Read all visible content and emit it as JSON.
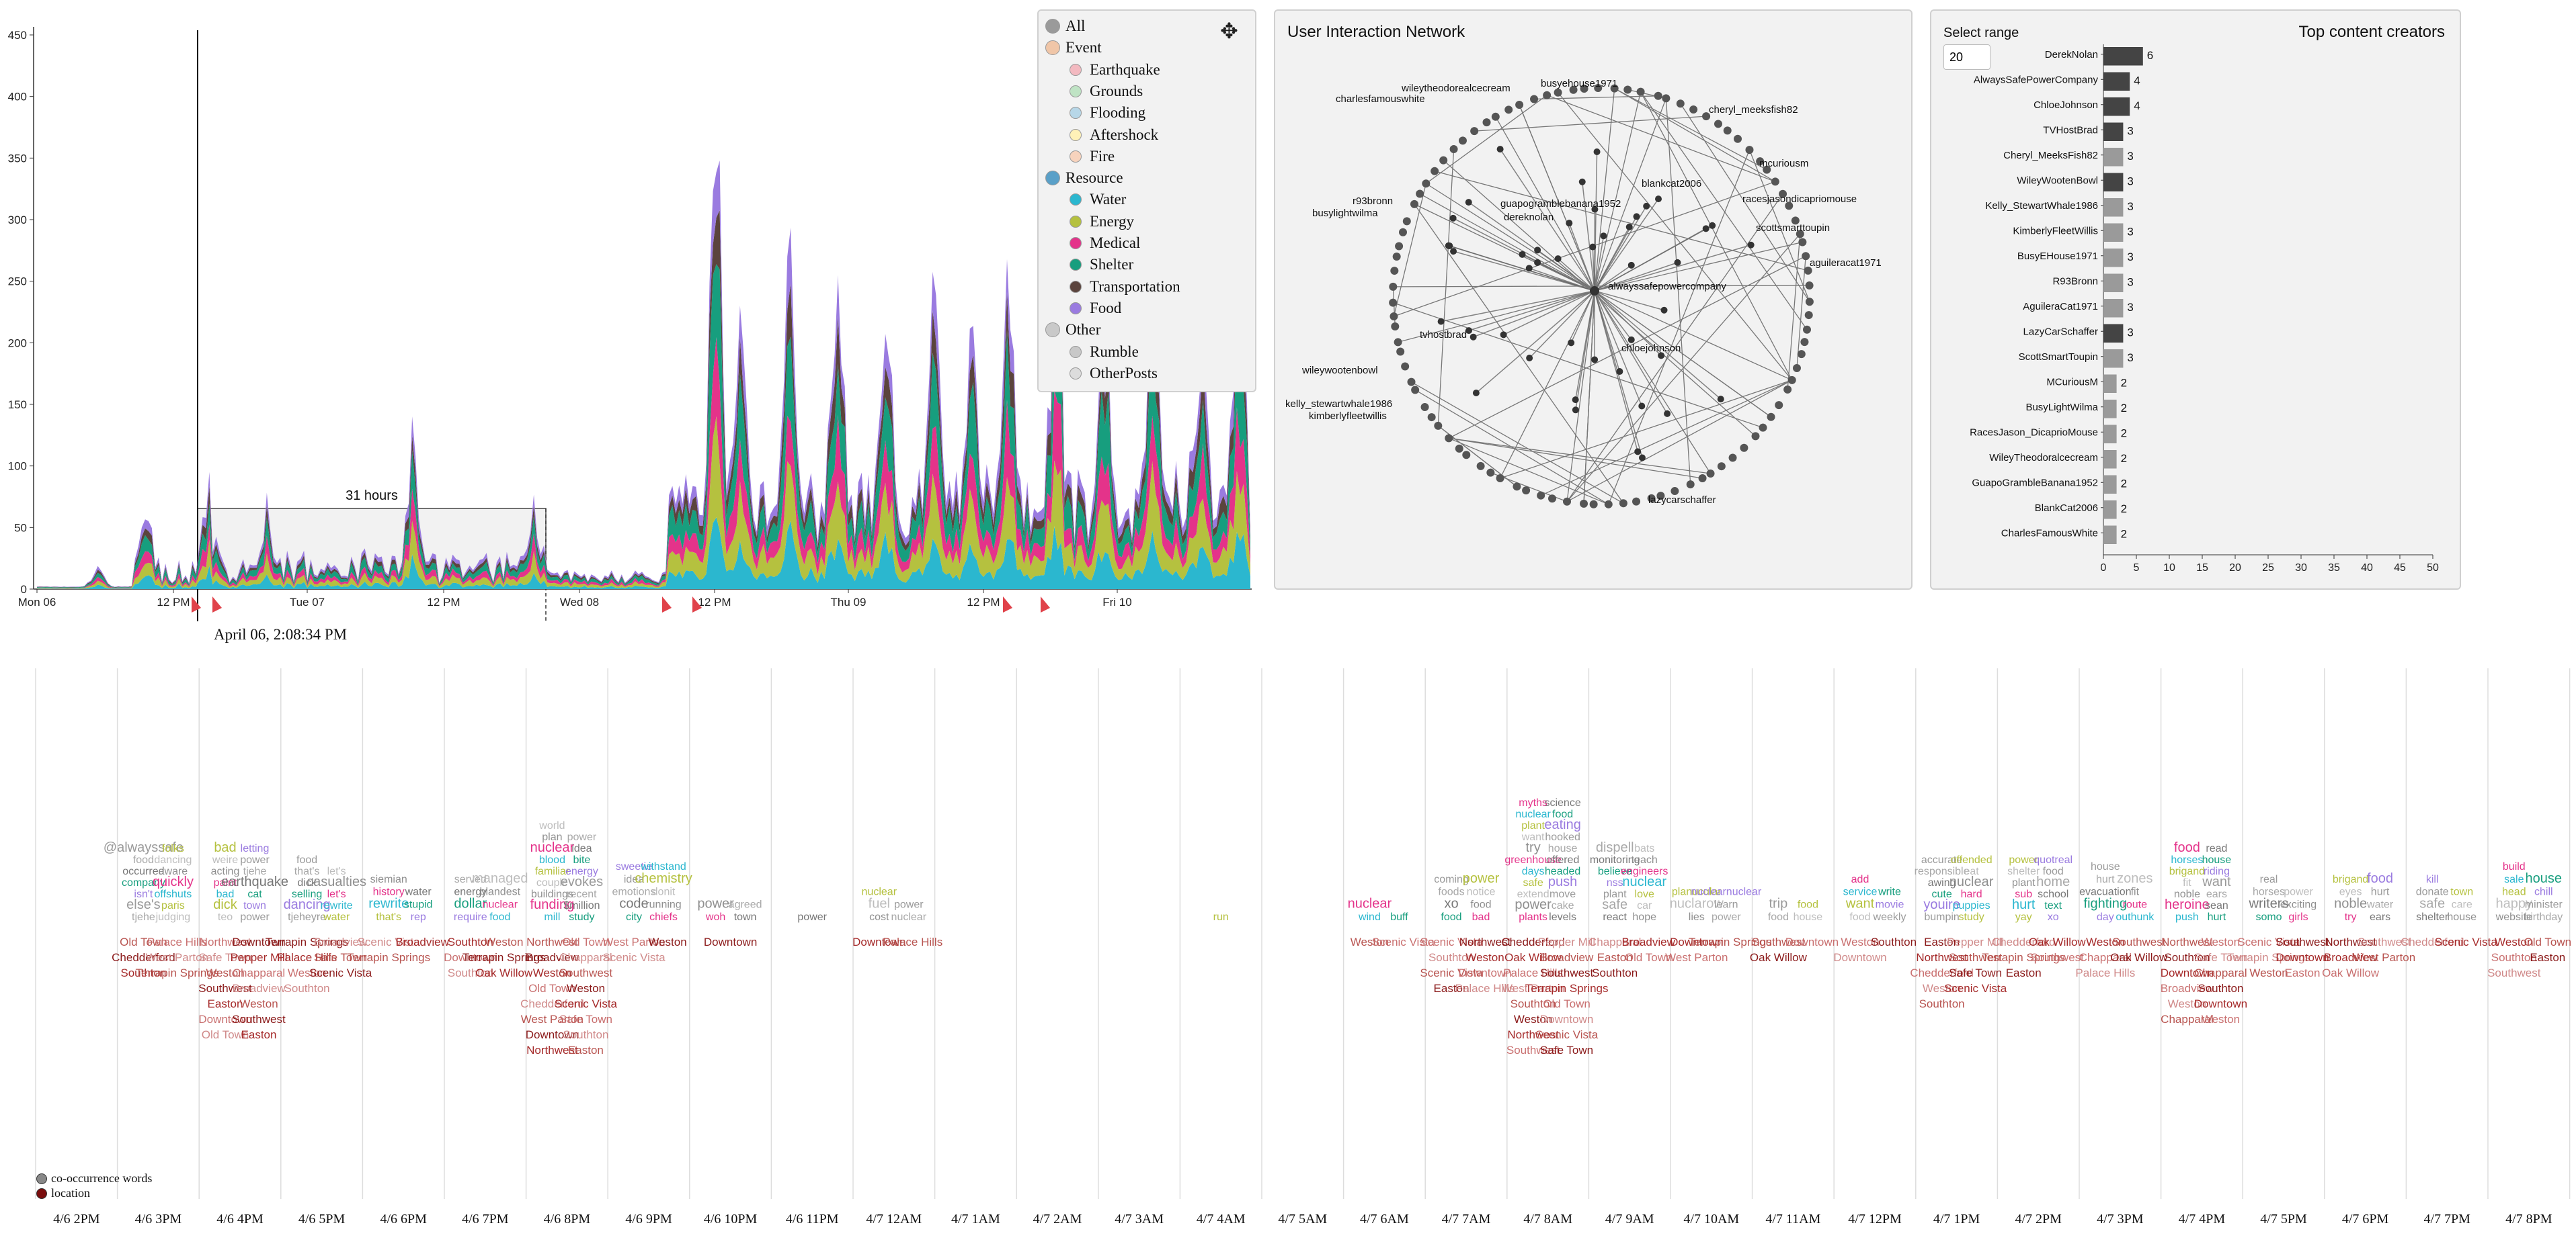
{
  "stream": {
    "y_ticks": [
      "0",
      "50",
      "100",
      "150",
      "200",
      "250",
      "300",
      "350",
      "400",
      "450"
    ],
    "x_ticks": [
      "Mon 06",
      "12 PM",
      "Tue 07",
      "12 PM",
      "Wed 08",
      "12 PM",
      "Thu 09",
      "12 PM",
      "Fri 10"
    ],
    "brush_label": "31 hours",
    "cursor_label": "April 06, 2:08:34 PM",
    "colors": {
      "Water": "#2bb7cf",
      "Energy": "#b5c13f",
      "Medical": "#e4338a",
      "Shelter": "#179e7e",
      "Transportation": "#5b443d",
      "Food": "#9a7be0"
    },
    "ylim": [
      0,
      460
    ]
  },
  "legend": {
    "items": [
      {
        "label": "All",
        "level": 0,
        "color": "#9a9a9a"
      },
      {
        "label": "Event",
        "level": 0,
        "color": "#f0c6a8"
      },
      {
        "label": "Earthquake",
        "level": 1,
        "color": "#f3b9c0"
      },
      {
        "label": "Grounds",
        "level": 1,
        "color": "#bfe3c4"
      },
      {
        "label": "Flooding",
        "level": 1,
        "color": "#b7d7e8"
      },
      {
        "label": "Aftershock",
        "level": 1,
        "color": "#fff2b8"
      },
      {
        "label": "Fire",
        "level": 1,
        "color": "#f7d3bd"
      },
      {
        "label": "Resource",
        "level": 0,
        "color": "#5aa0c8"
      },
      {
        "label": "Water",
        "level": 1,
        "color": "#2bb7cf"
      },
      {
        "label": "Energy",
        "level": 1,
        "color": "#b5c13f"
      },
      {
        "label": "Medical",
        "level": 1,
        "color": "#e4338a"
      },
      {
        "label": "Shelter",
        "level": 1,
        "color": "#179e7e"
      },
      {
        "label": "Transportation",
        "level": 1,
        "color": "#5b443d"
      },
      {
        "label": "Food",
        "level": 1,
        "color": "#9a7be0"
      },
      {
        "label": "Other",
        "level": 0,
        "color": "#c9c9c9"
      },
      {
        "label": "Rumble",
        "level": 1,
        "color": "#c8c8c8"
      },
      {
        "label": "OtherPosts",
        "level": 1,
        "color": "#dcdcdc"
      }
    ]
  },
  "network": {
    "title": "User Interaction Network",
    "labels": [
      "busyehouse1971",
      "wileytheodorealcecream",
      "charlesfamouswhite",
      "cheryl_meeksfish82",
      "mcuriousm",
      "blankcat2006",
      "racesjasondicapriomouse",
      "guapogramblebanana1952",
      "dereknolan",
      "r93bronn",
      "busylightwilma",
      "scottsmarttoupin",
      "aguileracat1971",
      "alwayssafepowercompany",
      "tvhostbrad",
      "chloejohnson",
      "wileywootenbowl",
      "kelly_stewartwhale1986",
      "kimberlyfleetwillis",
      "lazycarschaffer"
    ]
  },
  "creators": {
    "title": "Top content creators",
    "select_label": "Select range",
    "range_value": "20",
    "x_ticks": [
      "0",
      "5",
      "10",
      "15",
      "20",
      "25",
      "30",
      "35",
      "40",
      "45",
      "50"
    ],
    "chart_data": {
      "type": "bar",
      "categories": [
        "DerekNolan",
        "AlwaysSafePowerCompany",
        "ChloeJohnson",
        "TVHostBrad",
        "Cheryl_MeeksFish82",
        "WileyWootenBowl",
        "Kelly_StewartWhale1986",
        "KimberlyFleetWillis",
        "BusyEHouse1971",
        "R93Bronn",
        "AguileraCat1971",
        "LazyCarSchaffer",
        "ScottSmartToupin",
        "MCuriousM",
        "BusyLightWilma",
        "RacesJason_DicaprioMouse",
        "WileyTheodoralcecream",
        "GuapoGrambleBanana1952",
        "BlankCat2006",
        "CharlesFamousWhite"
      ],
      "values": [
        6,
        4,
        4,
        3,
        3,
        3,
        3,
        3,
        3,
        3,
        3,
        3,
        3,
        2,
        2,
        2,
        2,
        2,
        2,
        2
      ],
      "dark": [
        true,
        true,
        true,
        true,
        false,
        true,
        false,
        false,
        false,
        false,
        false,
        true,
        false,
        false,
        false,
        false,
        false,
        false,
        false,
        false
      ],
      "xlim": [
        0,
        50
      ]
    }
  },
  "wordcloud": {
    "time_labels": [
      "4/6 2PM",
      "4/6 3PM",
      "4/6 4PM",
      "4/6 5PM",
      "4/6 6PM",
      "4/6 7PM",
      "4/6 8PM",
      "4/6 9PM",
      "4/6 10PM",
      "4/6 11PM",
      "4/7 12AM",
      "4/7 1AM",
      "4/7 2AM",
      "4/7 3AM",
      "4/7 4AM",
      "4/7 5AM",
      "4/7 6AM",
      "4/7 7AM",
      "4/7 8AM",
      "4/7 9AM",
      "4/7 10AM",
      "4/7 11AM",
      "4/7 12PM",
      "4/7 1PM",
      "4/7 2PM",
      "4/7 3PM",
      "4/7 4PM",
      "4/7 5PM",
      "4/7 6PM",
      "4/7 7PM",
      "4/7 8PM"
    ],
    "legend_cooccurrence": "co-occurrence words",
    "legend_location": "location",
    "columns": [
      {
        "up": [],
        "down": []
      },
      {
        "up": [
          "tjehe",
          "judging",
          "else's",
          "paris",
          "isn't",
          "offshuts",
          "company",
          "quickly",
          "occurred",
          "aware",
          "food",
          "dancing",
          "@alwayssafe",
          "folks"
        ],
        "down": [
          "Old Town",
          "Palace Hills",
          "Chedderford",
          "West Parton",
          "Southton",
          "Terrapin Springs"
        ]
      },
      {
        "up": [
          "teo",
          "power",
          "dick",
          "town",
          "bad",
          "cat",
          "paint",
          "earthquake",
          "acting",
          "tjehe",
          "weire",
          "power",
          "bad",
          "letting"
        ],
        "down": [
          "Northwest",
          "Downtown",
          "Safe Town",
          "Pepper Mill",
          "Weston",
          "Chapparal",
          "Southwest",
          "Broadview",
          "Easton",
          "Weston",
          "Downtown",
          "Southwest",
          "Old Town",
          "Easton"
        ]
      },
      {
        "up": [
          "tjeheyre",
          "water",
          "dancing",
          "rewrite",
          "selling",
          "let's",
          "dick",
          "casualties",
          "that's",
          "let's",
          "food"
        ],
        "down": [
          "Terrapin Springs",
          "Broadview",
          "Palace Hills",
          "Safe Town",
          "Weston",
          "Scenic Vista",
          "Southton"
        ]
      },
      {
        "up": [
          "that's",
          "rep",
          "rewrite",
          "stupid",
          "history",
          "water",
          "siemian"
        ],
        "down": [
          "Scenic Vista",
          "Broadview",
          "Terrapin Springs"
        ]
      },
      {
        "up": [
          "require",
          "food",
          "dollar",
          "nuclear",
          "energy",
          "blandest",
          "served",
          "managed"
        ],
        "down": [
          "Southton",
          "Weston",
          "Downtown",
          "Terrapin Springs",
          "Southton",
          "Oak Willow"
        ]
      },
      {
        "up": [
          "mill",
          "study",
          "funding",
          "$million",
          "buildings",
          "recent",
          "couple",
          "evokes",
          "familiar",
          "energy",
          "blood",
          "bite",
          "nuclear",
          "idea",
          "plan",
          "power",
          "world"
        ],
        "down": [
          "Northwest",
          "Old Town",
          "Broadview",
          "Chapparal",
          "Weston",
          "Southwest",
          "Old Town",
          "Weston",
          "Chedderford",
          "Scenic Vista",
          "West Parton",
          "Safe Town",
          "Downtown",
          "Southton",
          "Northwest",
          "Easton"
        ]
      },
      {
        "up": [
          "city",
          "chiefs",
          "code",
          "running",
          "emotions",
          "donit",
          "idea",
          "chemistry",
          "sweetie",
          "withstand"
        ],
        "down": [
          "West Parton",
          "Weston",
          "Scenic Vista"
        ]
      },
      {
        "up": [
          "woh",
          "town",
          "power",
          "agreed"
        ],
        "down": [
          "Downtown"
        ]
      },
      {
        "up": [
          "power"
        ],
        "down": []
      },
      {
        "up": [
          "cost",
          "nuclear",
          "fuel",
          "power",
          "nuclear"
        ],
        "down": [
          "Downtown",
          "Palace Hills"
        ]
      },
      {
        "up": [],
        "down": []
      },
      {
        "up": [],
        "down": []
      },
      {
        "up": [],
        "down": []
      },
      {
        "up": [
          "run"
        ],
        "down": []
      },
      {
        "up": [],
        "down": []
      },
      {
        "up": [
          "wind",
          "buff",
          "nuclear"
        ],
        "down": [
          "Weston",
          "Scenic Vista"
        ]
      },
      {
        "up": [
          "food",
          "bad",
          "xo",
          "food",
          "foods",
          "notice",
          "coming",
          "power"
        ],
        "down": [
          "Scenic Vista",
          "Northwest",
          "Southton",
          "Weston",
          "Scenic Vista",
          "Downtown",
          "Easton",
          "Palace Hills"
        ]
      },
      {
        "up": [
          "plants",
          "levels",
          "power",
          "cake",
          "extend",
          "move",
          "safe",
          "push",
          "days",
          "headed",
          "greenhouse",
          "offered",
          "try",
          "house",
          "want",
          "hooked",
          "plant",
          "eating",
          "nuclear",
          "food",
          "myths",
          "science"
        ],
        "down": [
          "Chedderford",
          "Pepper Mill",
          "Oak Willow",
          "Broadview",
          "Palace Hills",
          "Southwest",
          "West Parton",
          "Terrapin Springs",
          "Southton",
          "Old Town",
          "Weston",
          "Downtown",
          "Northwest",
          "Scenic Vista",
          "Southwest",
          "Safe Town"
        ]
      },
      {
        "up": [
          "react",
          "hope",
          "safe",
          "car",
          "plant",
          "love",
          "nss",
          "nuclear",
          "believe",
          "engineers",
          "monitoring",
          "teach",
          "dispell",
          "bats"
        ],
        "down": [
          "Chapparal",
          "Broadview",
          "Easton",
          "Old Town",
          "Southton"
        ]
      },
      {
        "up": [
          "lies",
          "power",
          "nuclarow",
          "learn",
          "planucular",
          "nuclearnuclear"
        ],
        "down": [
          "Downtown",
          "Terrapin Springs",
          "West Parton"
        ]
      },
      {
        "up": [
          "food",
          "house",
          "trip",
          "food"
        ],
        "down": [
          "Southwest",
          "Downtown",
          "Oak Willow"
        ]
      },
      {
        "up": [
          "food",
          "weekly",
          "want",
          "movie",
          "service",
          "write",
          "add"
        ],
        "down": [
          "Weston",
          "Southton",
          "Downtown"
        ]
      },
      {
        "up": [
          "bumpin",
          "study",
          "youire",
          "puppies",
          "cute",
          "hard",
          "awing",
          "nuclear",
          "responsible",
          "eat",
          "accurate",
          "offended"
        ],
        "down": [
          "Easton",
          "Pepper Mill",
          "Northwest",
          "Southwest",
          "Chedderford",
          "Safe Town",
          "Weston",
          "Scenic Vista",
          "Southton"
        ]
      },
      {
        "up": [
          "yay",
          "xo",
          "hurt",
          "text",
          "sub",
          "school",
          "plant",
          "home",
          "shelter",
          "food",
          "power",
          "quotreal"
        ],
        "down": [
          "Chedderford",
          "Oak Willow",
          "Terrapin Springs",
          "Southwest",
          "Easton"
        ]
      },
      {
        "up": [
          "day",
          "outhunk",
          "fighting",
          "route",
          "evacuation",
          "fit",
          "hurt",
          "zones",
          "house"
        ],
        "down": [
          "Weston",
          "Southwest",
          "Chapparal",
          "Oak Willow",
          "Palace Hills"
        ]
      },
      {
        "up": [
          "push",
          "hurt",
          "heroine",
          "sean",
          "noble",
          "ears",
          "fit",
          "want",
          "brigand",
          "riding",
          "horses",
          "house",
          "food",
          "read"
        ],
        "down": [
          "Northwest",
          "Weston",
          "Southton",
          "Safe Town",
          "Downtown",
          "Chapparal",
          "Broadview",
          "Southton",
          "Weston",
          "Downtown",
          "Chapparal",
          "Weston"
        ]
      },
      {
        "up": [
          "somo",
          "girls",
          "writers",
          "exciting",
          "horses",
          "power",
          "real"
        ],
        "down": [
          "Scenic Vista",
          "Southwest",
          "Terrapin Springs",
          "Downtown",
          "Weston",
          "Easton"
        ]
      },
      {
        "up": [
          "try",
          "ears",
          "noble",
          "water",
          "eyes",
          "hurt",
          "brigand",
          "food"
        ],
        "down": [
          "Northwest",
          "Southwest",
          "Broadview",
          "West Parton",
          "Oak Willow"
        ]
      },
      {
        "up": [
          "shelter",
          "house",
          "safe",
          "care",
          "donate",
          "town",
          "kill"
        ],
        "down": [
          "Chedderford",
          "Scenic Vista"
        ]
      },
      {
        "up": [
          "website",
          "birthday",
          "happy",
          "minister",
          "head",
          "chill",
          "sale",
          "house",
          "build"
        ],
        "down": [
          "Weston",
          "Old Town",
          "Southton",
          "Easton",
          "Southwest"
        ]
      }
    ]
  }
}
